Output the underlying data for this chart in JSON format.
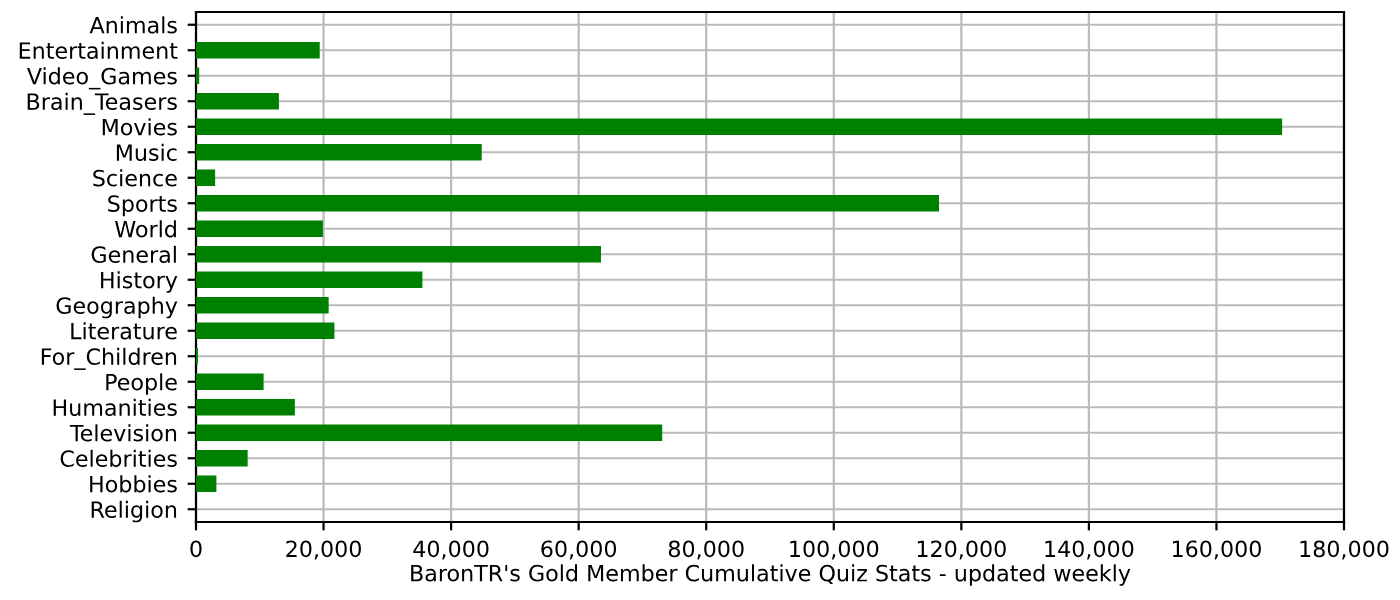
{
  "chart_data": {
    "type": "bar",
    "orientation": "horizontal",
    "xlabel": "BaronTR's Gold Member Cumulative Quiz Stats - updated weekly",
    "categories": [
      "Animals",
      "Entertainment",
      "Video_Games",
      "Brain_Teasers",
      "Movies",
      "Music",
      "Science",
      "Sports",
      "World",
      "General",
      "History",
      "Geography",
      "Literature",
      "For_Children",
      "People",
      "Humanities",
      "Television",
      "Celebrities",
      "Hobbies",
      "Religion"
    ],
    "values": [
      0,
      19400,
      500,
      13000,
      170300,
      44800,
      3000,
      116500,
      19900,
      63500,
      35500,
      20800,
      21700,
      300,
      10600,
      15500,
      73100,
      8100,
      3200,
      0
    ],
    "color": "#008000",
    "xlim": [
      0,
      180000
    ],
    "xticks": [
      {
        "value": 0,
        "label": "0"
      },
      {
        "value": 20000,
        "label": "20,000"
      },
      {
        "value": 40000,
        "label": "40,000"
      },
      {
        "value": 60000,
        "label": "60,000"
      },
      {
        "value": 80000,
        "label": "80,000"
      },
      {
        "value": 100000,
        "label": "100,000"
      },
      {
        "value": 120000,
        "label": "120,000"
      },
      {
        "value": 140000,
        "label": "140,000"
      },
      {
        "value": 160000,
        "label": "160,000"
      },
      {
        "value": 180000,
        "label": "180,000"
      }
    ],
    "grid": true
  }
}
